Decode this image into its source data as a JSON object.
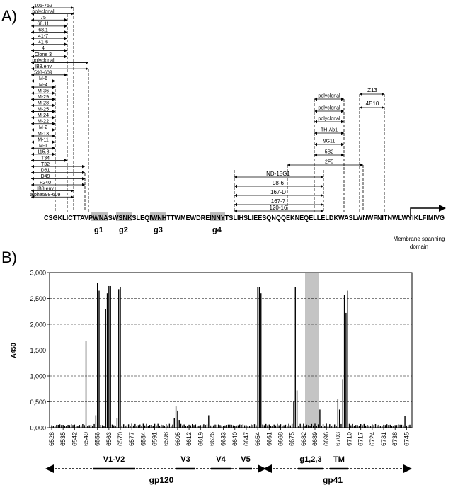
{
  "panel_a": {
    "label": "A)",
    "sequence": "CSGKLICTTAVPWNASWSNKSLEQIWNHTTWMEWDREINNYTSLIHSLIEESQNQQEKNEQELLELDKWASLWNWFNITNWLWYIKLFIMIVG",
    "glyco_labels": [
      "g1",
      "g2",
      "g3",
      "g4"
    ],
    "tm_label_line1": "Membrane spanning",
    "tm_label_line2": "domain",
    "left_antibodies": [
      "105-752",
      "polyclonal",
      "75",
      "68.11",
      "68.1",
      "41-7",
      "41-6",
      "4",
      "Clone 3",
      "polyclonal",
      "IB8.env",
      "598-609",
      "M-6",
      "M-4",
      "M-36",
      "M-29",
      "M-28",
      "M-25",
      "M-24",
      "M-22",
      "M-2",
      "M-13",
      "M-11",
      "M-1",
      "115.8",
      "T34",
      "T32",
      "D61",
      "D49",
      "F240",
      "IB8.env",
      "alpha598-609"
    ],
    "mid_antibodies": [
      "ND-15G1",
      "98-6",
      "167-D",
      "167-7",
      "120-16"
    ],
    "right_antibodies": [
      "polyclonal",
      "polyclonal",
      "polyclonal",
      "TH-Ab1",
      "9G11",
      "5B2",
      "2F5"
    ],
    "far_right_antibodies": [
      "Z13",
      "4E10"
    ]
  },
  "panel_b": {
    "label": "B)",
    "ylabel": "A450",
    "regions": [
      {
        "label": "V1-V2"
      },
      {
        "label": "V3"
      },
      {
        "label": "V4"
      },
      {
        "label": "V5"
      },
      {
        "label": "g1,2,3"
      },
      {
        "label": "TM"
      }
    ],
    "domains": [
      {
        "label": "gp120"
      },
      {
        "label": "gp41"
      }
    ]
  },
  "chart_data": {
    "type": "bar",
    "title": "",
    "xlabel": "",
    "ylabel": "A450",
    "ylim": [
      0,
      3000
    ],
    "yticks": [
      "0,000",
      "0,500",
      "1,000",
      "1,500",
      "2,000",
      "2,500",
      "3,000"
    ],
    "xlim": [
      6528,
      6747
    ],
    "xticks": [
      6528,
      6535,
      6542,
      6549,
      6556,
      6563,
      6570,
      6577,
      6584,
      6591,
      6598,
      6605,
      6612,
      6619,
      6626,
      6633,
      6640,
      6647,
      6654,
      6661,
      6668,
      6675,
      6682,
      6689,
      6696,
      6703,
      6710,
      6717,
      6724,
      6731,
      6738,
      6745
    ],
    "highlight_range": [
      6681,
      6685
    ],
    "grid": "horizontal dashed",
    "peaks": [
      {
        "x": 6549,
        "value": 1680
      },
      {
        "x": 6555,
        "value": 240
      },
      {
        "x": 6556,
        "value": 2800
      },
      {
        "x": 6557,
        "value": 2650
      },
      {
        "x": 6561,
        "value": 2300
      },
      {
        "x": 6562,
        "value": 2600
      },
      {
        "x": 6563,
        "value": 2740
      },
      {
        "x": 6564,
        "value": 2740
      },
      {
        "x": 6568,
        "value": 180
      },
      {
        "x": 6569,
        "value": 2680
      },
      {
        "x": 6570,
        "value": 2720
      },
      {
        "x": 6603,
        "value": 180
      },
      {
        "x": 6604,
        "value": 410
      },
      {
        "x": 6605,
        "value": 330
      },
      {
        "x": 6606,
        "value": 150
      },
      {
        "x": 6624,
        "value": 240
      },
      {
        "x": 6654,
        "value": 2720
      },
      {
        "x": 6655,
        "value": 2720
      },
      {
        "x": 6656,
        "value": 2600
      },
      {
        "x": 6676,
        "value": 520
      },
      {
        "x": 6677,
        "value": 2720
      },
      {
        "x": 6678,
        "value": 720
      },
      {
        "x": 6692,
        "value": 350
      },
      {
        "x": 6703,
        "value": 550
      },
      {
        "x": 6704,
        "value": 350
      },
      {
        "x": 6706,
        "value": 940
      },
      {
        "x": 6707,
        "value": 2570
      },
      {
        "x": 6708,
        "value": 2220
      },
      {
        "x": 6709,
        "value": 2650
      },
      {
        "x": 6744,
        "value": 220
      }
    ],
    "baseline_value": 60
  }
}
